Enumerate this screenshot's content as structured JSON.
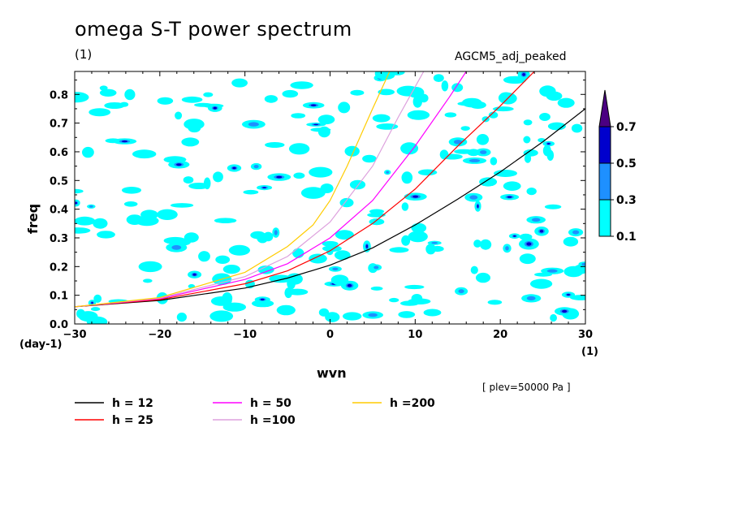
{
  "header": {
    "title": "omega S-T power spectrum",
    "title_unit": "(1)",
    "run_name": "AGCM5_adj_peaked",
    "plev_note": "[ plev=50000 Pa ]"
  },
  "chart_data": {
    "type": "heatmap",
    "xlabel": "wvn",
    "ylabel": "freq",
    "x_unit": "(1)",
    "y_unit": "(day-1)",
    "xlim": [
      -30,
      30
    ],
    "ylim": [
      0,
      0.88
    ],
    "x_ticks": [
      -30,
      -20,
      -10,
      0,
      10,
      20,
      30
    ],
    "x_tick_labels": [
      "−30",
      "−20",
      "−10",
      "0",
      "10",
      "20",
      "30"
    ],
    "y_ticks": [
      0,
      0.1,
      0.2,
      0.3,
      0.4,
      0.5,
      0.6,
      0.7,
      0.8
    ],
    "y_tick_labels": [
      "0.0",
      "0.1",
      "0.2",
      "0.3",
      "0.4",
      "0.5",
      "0.6",
      "0.7",
      "0.8"
    ],
    "colorbar": {
      "levels": [
        "0.1",
        "0.3",
        "0.5",
        "0.7"
      ],
      "colors": [
        "#00ffff",
        "#1e90ff",
        "#0000cd",
        "#4b0082"
      ]
    },
    "contour_fill": {
      "low": "#00ffff",
      "mid": "#1e90ff",
      "high": "#0000cd",
      "top": "#4b0082"
    },
    "series": [
      {
        "name": "h = 12",
        "color": "#000000",
        "x": [
          -30,
          -20,
          -10,
          -5,
          0,
          5,
          10,
          15,
          20,
          25,
          30
        ],
        "y": [
          0.06,
          0.082,
          0.125,
          0.16,
          0.205,
          0.265,
          0.345,
          0.435,
          0.53,
          0.635,
          0.75
        ]
      },
      {
        "name": "h = 25",
        "color": "#ff0000",
        "x": [
          -30,
          -20,
          -10,
          -5,
          0,
          5,
          10,
          15,
          20,
          24
        ],
        "y": [
          0.06,
          0.085,
          0.14,
          0.185,
          0.255,
          0.35,
          0.47,
          0.62,
          0.76,
          0.88
        ]
      },
      {
        "name": "h = 50",
        "color": "#ff00ff",
        "x": [
          -30,
          -20,
          -10,
          -5,
          0,
          5,
          10,
          14,
          16
        ],
        "y": [
          0.06,
          0.088,
          0.155,
          0.21,
          0.3,
          0.43,
          0.62,
          0.79,
          0.88
        ]
      },
      {
        "name": "h =100",
        "color": "#dda0dd",
        "x": [
          -30,
          -20,
          -10,
          -5,
          0,
          5,
          8,
          11
        ],
        "y": [
          0.06,
          0.09,
          0.165,
          0.235,
          0.355,
          0.55,
          0.72,
          0.88
        ]
      },
      {
        "name": "h =200",
        "color": "#ffcc00",
        "x": [
          -30,
          -20,
          -10,
          -5,
          -2,
          0,
          2,
          5,
          7
        ],
        "y": [
          0.06,
          0.092,
          0.18,
          0.27,
          0.345,
          0.43,
          0.55,
          0.75,
          0.88
        ]
      }
    ]
  }
}
